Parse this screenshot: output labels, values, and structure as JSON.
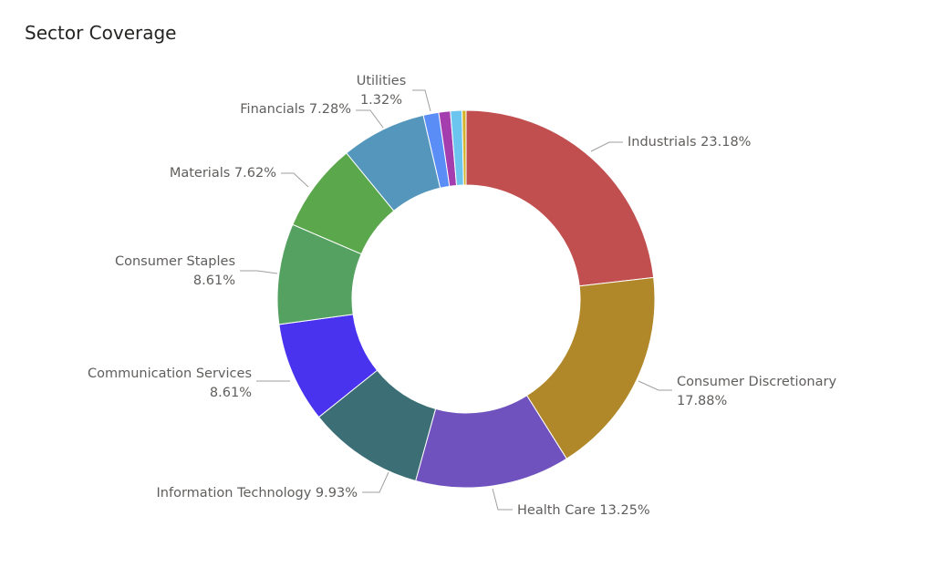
{
  "title": "Sector Coverage",
  "chart_data": {
    "type": "pie",
    "variant": "donut",
    "title": "Sector Coverage",
    "legend": "none",
    "slices": [
      {
        "name": "Industrials",
        "value": 23.18,
        "label": "23.18%",
        "color": "#C14F4F"
      },
      {
        "name": "Consumer Discretionary",
        "value": 17.88,
        "label": "17.88%",
        "color": "#B0882A"
      },
      {
        "name": "Health Care",
        "value": 13.25,
        "label": "13.25%",
        "color": "#7052BE"
      },
      {
        "name": "Information Technology",
        "value": 9.93,
        "label": "9.93%",
        "color": "#3B6E75"
      },
      {
        "name": "Communication Services",
        "value": 8.61,
        "label": "8.61%",
        "color": "#4A33EE"
      },
      {
        "name": "Consumer Staples",
        "value": 8.61,
        "label": "8.61%",
        "color": "#55A162"
      },
      {
        "name": "Materials",
        "value": 7.62,
        "label": "7.62%",
        "color": "#5BA84C"
      },
      {
        "name": "Financials",
        "value": 7.28,
        "label": "7.28%",
        "color": "#5596BC"
      },
      {
        "name": "Utilities",
        "value": 1.32,
        "label": "1.32%",
        "color": "#5B8DF7"
      },
      {
        "name": "",
        "value": 0.99,
        "label": "",
        "color": "#A43DAD"
      },
      {
        "name": "",
        "value": 0.99,
        "label": "",
        "color": "#6CC5EF"
      },
      {
        "name": "",
        "value": 0.34,
        "label": "",
        "color": "#D4B22B"
      }
    ]
  }
}
